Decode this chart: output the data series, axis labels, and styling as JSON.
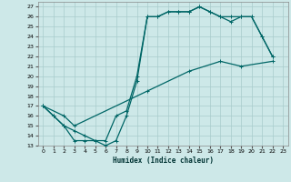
{
  "xlabel": "Humidex (Indice chaleur)",
  "xlim": [
    -0.5,
    23.5
  ],
  "ylim": [
    13,
    27.5
  ],
  "yticks": [
    13,
    14,
    15,
    16,
    17,
    18,
    19,
    20,
    21,
    22,
    23,
    24,
    25,
    26,
    27
  ],
  "xticks": [
    0,
    1,
    2,
    3,
    4,
    5,
    6,
    7,
    8,
    9,
    10,
    11,
    12,
    13,
    14,
    15,
    16,
    17,
    18,
    19,
    20,
    21,
    22,
    23
  ],
  "bg_color": "#cde8e8",
  "line_color": "#006666",
  "grid_color": "#a8cccc",
  "line1_x": [
    0,
    1,
    2,
    3,
    4,
    5,
    6,
    7,
    8,
    9,
    10,
    11,
    12,
    13,
    14,
    15,
    16,
    17,
    18,
    19,
    20,
    21,
    22
  ],
  "line1_y": [
    17,
    16,
    15,
    13.5,
    13.5,
    13.5,
    13,
    13.5,
    16,
    19.5,
    26,
    26,
    26.5,
    26.5,
    26.5,
    27,
    26.5,
    26,
    26,
    26,
    26,
    24,
    22
  ],
  "line2_x": [
    0,
    1,
    2,
    3,
    4,
    5,
    6,
    7,
    8,
    9,
    10,
    11,
    12,
    13,
    14,
    15,
    16,
    17,
    18,
    19,
    20,
    21,
    22
  ],
  "line2_y": [
    17,
    16,
    15,
    14.5,
    14.0,
    13.5,
    13.5,
    16.0,
    16.5,
    20.0,
    26,
    26,
    26.5,
    26.5,
    26.5,
    27,
    26.5,
    26,
    25.5,
    26,
    26,
    24,
    22
  ],
  "line3_x": [
    0,
    2,
    3,
    10,
    14,
    17,
    19,
    22
  ],
  "line3_y": [
    17,
    16,
    15,
    18.5,
    20.5,
    21.5,
    21.0,
    21.5
  ]
}
